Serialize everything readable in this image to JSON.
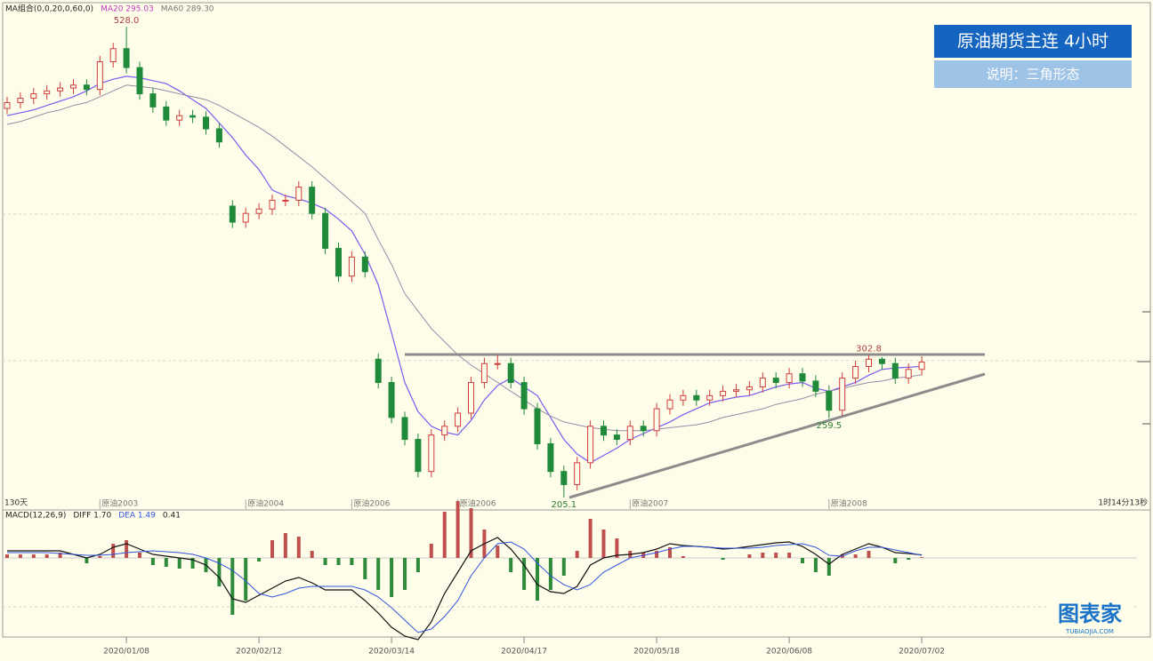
{
  "chart_data": [
    {
      "type": "candlestick",
      "legend": [
        "MA组合(0,0,20,0,60,0)",
        "MA20 295.03",
        "MA60 289.30"
      ],
      "legend_colors": [
        "#222222",
        "#c03cc0",
        "#777777"
      ],
      "title": "原油期货主连  4小时",
      "subtitle": "说明：三角形态",
      "period_label": "130天",
      "countdown": "1时14分13秒",
      "categories": [
        null,
        null,
        null,
        null,
        null,
        null,
        null,
        null,
        null,
        "2020/01/08",
        null,
        null,
        null,
        null,
        null,
        null,
        null,
        null,
        null,
        "2020/02/12",
        null,
        null,
        null,
        null,
        null,
        null,
        null,
        null,
        null,
        "2020/03/14",
        null,
        null,
        null,
        null,
        null,
        null,
        null,
        null,
        null,
        "2020/04/17",
        null,
        null,
        null,
        null,
        null,
        null,
        null,
        null,
        null,
        "2020/05/18",
        null,
        null,
        null,
        null,
        null,
        null,
        null,
        null,
        null,
        "2020/06/08",
        null,
        null,
        null,
        null,
        null,
        null,
        null,
        null,
        null,
        "2020/07/02"
      ],
      "contracts": [
        null,
        null,
        null,
        null,
        null,
        null,
        null,
        "原油2003",
        null,
        null,
        null,
        null,
        null,
        null,
        null,
        null,
        null,
        null,
        "原油2004",
        null,
        null,
        null,
        null,
        null,
        null,
        null,
        "原油2006",
        null,
        null,
        null,
        null,
        null,
        null,
        null,
        "原油2006",
        null,
        null,
        null,
        null,
        null,
        null,
        null,
        null,
        null,
        null,
        null,
        null,
        "原油2007",
        null,
        null,
        null,
        null,
        null,
        null,
        null,
        null,
        null,
        null,
        null,
        null,
        null,
        null,
        "原油2008",
        null,
        null,
        null,
        null,
        null,
        null,
        null
      ],
      "open": [
        472,
        476,
        479,
        482,
        484,
        486,
        488,
        485,
        504,
        513,
        500,
        482,
        473,
        464,
        467,
        466,
        458,
        405,
        394,
        400,
        403,
        409,
        409,
        418,
        400,
        376,
        357,
        370,
        300,
        284,
        260,
        245,
        223,
        248,
        254,
        263,
        284,
        297,
        297,
        284,
        266,
        242,
        223,
        214,
        229,
        254,
        248,
        245,
        254,
        251,
        266,
        272,
        275,
        272,
        275,
        278,
        279,
        281,
        287,
        284,
        290,
        285,
        278,
        265,
        287,
        295,
        300,
        297,
        287,
        293
      ],
      "high": [
        480,
        483,
        486,
        488,
        490,
        492,
        492,
        508,
        517,
        528,
        504,
        486,
        477,
        471,
        471,
        470,
        462,
        409,
        404,
        407,
        413,
        413,
        422,
        422,
        404,
        380,
        374,
        374,
        304,
        288,
        264,
        249,
        252,
        258,
        267,
        288,
        301,
        303,
        301,
        288,
        270,
        246,
        227,
        233,
        258,
        258,
        252,
        258,
        258,
        270,
        276,
        279,
        279,
        279,
        282,
        283,
        285,
        291,
        291,
        294,
        294,
        289,
        282,
        291,
        299,
        302.8,
        301.5,
        301,
        297,
        302
      ],
      "low": [
        468,
        472,
        475,
        478,
        480,
        482,
        481,
        481,
        500,
        496,
        478,
        469,
        460,
        460,
        462,
        454,
        445,
        390,
        390,
        396,
        399,
        405,
        405,
        396,
        372,
        353,
        353,
        356,
        280,
        256,
        241,
        219,
        219,
        244,
        250,
        259,
        280,
        293,
        280,
        262,
        238,
        219,
        205.1,
        210,
        225,
        244,
        241,
        241,
        247,
        247,
        262,
        268,
        268,
        268,
        271,
        274,
        275,
        277,
        280,
        280,
        281,
        274,
        259.5,
        261,
        283,
        291,
        293,
        283,
        283,
        289
      ],
      "close": [
        476,
        479,
        482,
        484,
        486,
        488,
        485,
        504,
        513,
        500,
        482,
        473,
        464,
        467,
        466,
        458,
        449,
        394,
        400,
        403,
        409,
        409,
        418,
        400,
        376,
        357,
        370,
        360,
        284,
        260,
        245,
        223,
        248,
        254,
        263,
        284,
        297,
        297,
        284,
        266,
        242,
        223,
        214,
        229,
        254,
        248,
        245,
        254,
        251,
        266,
        272,
        275,
        272,
        275,
        278,
        279,
        281,
        287,
        284,
        290,
        285,
        278,
        265,
        287,
        295,
        300,
        297,
        287,
        293,
        298
      ],
      "up_color": "#d23c3c",
      "down_color": "#1f8a3a",
      "series": [
        {
          "color": "#7a5cf0",
          "values": [
            467,
            469,
            471,
            474,
            477,
            480,
            484,
            489,
            492,
            494,
            493,
            491,
            489,
            484,
            478,
            472,
            462,
            452,
            440,
            430,
            416,
            412,
            410,
            407,
            403,
            396,
            388,
            372,
            351,
            318,
            284,
            264,
            254,
            250,
            248,
            258,
            272,
            282,
            287,
            281,
            275,
            260,
            245,
            235,
            229,
            234,
            239,
            245,
            249,
            253,
            257,
            262,
            266,
            270,
            272,
            274,
            275,
            278,
            281,
            283,
            284,
            280,
            278,
            281,
            284,
            289,
            293,
            294,
            294.5,
            295.03
          ]
        },
        {
          "color": "#9a8aa8",
          "values": [
            461,
            463,
            466,
            469,
            471,
            474,
            476,
            480,
            484,
            488,
            487,
            486,
            484,
            482,
            480,
            478,
            474,
            469,
            464,
            459,
            453,
            446,
            439,
            432,
            424,
            416,
            408,
            400,
            382,
            365,
            345,
            333,
            321,
            312,
            303,
            296,
            290,
            284,
            278,
            272,
            266,
            261,
            257,
            255,
            253,
            252,
            251,
            251,
            251,
            252,
            253,
            254,
            255,
            257,
            260,
            262,
            264,
            266,
            269,
            271,
            273,
            276,
            278,
            280,
            282,
            284,
            285,
            287,
            288,
            289.3
          ]
        }
      ],
      "annotations": [
        {
          "at": 9,
          "value": 528,
          "label": "528.0",
          "place": "above"
        },
        {
          "at": 42,
          "value": 205.1,
          "place": "below"
        },
        {
          "at": 65,
          "value": 302.8,
          "place": "above"
        },
        {
          "at": 62,
          "value": 259.5,
          "place": "below"
        }
      ],
      "ylim": [
        197.2,
        543.3
      ]
    },
    {
      "type": "macd",
      "legend": [
        "MACD(12,26,9)",
        "DIFF 1.70",
        "DEA 1.49",
        "0.41"
      ],
      "legend_colors": [
        "#222222",
        "#222222",
        "#3355dd",
        "#222222"
      ],
      "diff": [
        4,
        4,
        4,
        4,
        4,
        2,
        0,
        2,
        6,
        8,
        5,
        2,
        1,
        0,
        -1,
        -4,
        -11,
        -23,
        -25,
        -21,
        -17,
        -13,
        -11,
        -14,
        -18,
        -18,
        -18,
        -24,
        -31,
        -39,
        -44,
        -46,
        -36,
        -20,
        -8,
        4,
        8,
        11.5,
        5,
        -4,
        -15,
        -19,
        -20,
        -16,
        -4,
        0,
        1.5,
        2,
        3,
        5,
        8,
        7,
        6.5,
        6,
        5,
        5.5,
        6.5,
        7.5,
        8.5,
        9,
        6.5,
        2,
        -3.5,
        2,
        5,
        8,
        6,
        3,
        2.5,
        1.7
      ],
      "dea": [
        3,
        3,
        3,
        3,
        2.5,
        2,
        1.5,
        1.5,
        2,
        3,
        3.5,
        4,
        3.5,
        3,
        2,
        0,
        -3,
        -7,
        -13,
        -20,
        -22,
        -20,
        -17,
        -16,
        -16,
        -16,
        -16,
        -18,
        -22,
        -28,
        -35,
        -42,
        -40,
        -33,
        -24,
        -10,
        0,
        8,
        9,
        5,
        -3,
        -10,
        -15,
        -18,
        -15,
        -8,
        -4,
        0,
        1.5,
        3,
        5,
        6.5,
        6.5,
        6,
        5.5,
        5.5,
        5.5,
        6,
        7,
        7.5,
        8,
        6,
        1.5,
        1,
        4,
        6,
        6,
        4.5,
        3,
        1.49
      ],
      "hist": [
        2,
        2,
        2,
        2,
        3,
        0,
        -3,
        1,
        8,
        10,
        3,
        -4,
        -5,
        -6,
        -6,
        -8,
        -16,
        -32,
        -24,
        -2,
        10,
        14,
        12,
        4,
        -4,
        -4,
        -4,
        -12,
        -18,
        -22,
        -18,
        -8,
        8,
        26,
        32,
        28,
        16,
        7,
        -8,
        -18,
        -24,
        -18,
        -10,
        4,
        22,
        16,
        11,
        4,
        3,
        4,
        6,
        1,
        0,
        0,
        -1,
        0,
        2,
        3,
        3,
        3,
        -3,
        -8,
        -10,
        2,
        2,
        4,
        0,
        -3,
        -1,
        0.41
      ],
      "diff_color": "#111111",
      "dea_color": "#3355dd",
      "pos_color": "#c0504d",
      "neg_color": "#2e8b3a",
      "ylim": [
        -46,
        25
      ]
    }
  ],
  "logo": {
    "name": "图表家",
    "url": "TUBIAOJIA.COM"
  }
}
